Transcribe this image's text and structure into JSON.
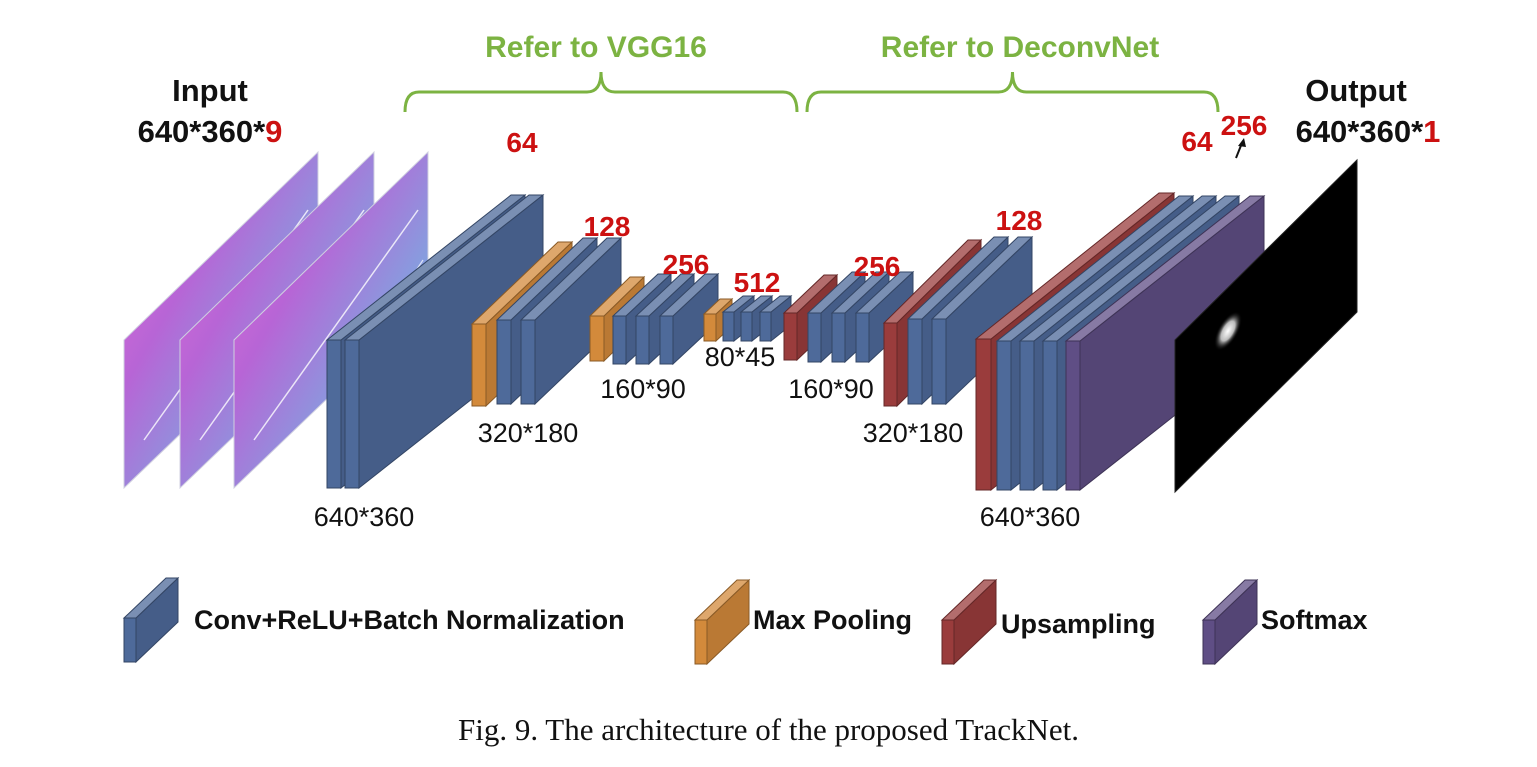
{
  "colors": {
    "conv": "#4e6a9a",
    "pool": "#d38a3b",
    "upsample": "#9a3c3c",
    "softmax": "#5f4e85",
    "bracket": "#7cb342",
    "highlight": "#cc1111",
    "text": "#111111"
  },
  "brackets": {
    "left": "Refer to VGG16",
    "right": "Refer to DeconvNet"
  },
  "input": {
    "title": "Input",
    "dims_prefix": "640*360*",
    "dims_channels": "9"
  },
  "output": {
    "title": "Output",
    "dims_prefix": "640*360*",
    "dims_channels": "1"
  },
  "channel_labels": [
    "64",
    "128",
    "256",
    "512",
    "256",
    "128",
    "64",
    "256"
  ],
  "size_labels": [
    "640*360",
    "320*180",
    "160*90",
    "80*45",
    "160*90",
    "320*180",
    "640*360"
  ],
  "legend": [
    {
      "label": "Conv+ReLU+Batch Normalization",
      "icon": "conv-block-icon"
    },
    {
      "label": "Max Pooling",
      "icon": "pool-block-icon"
    },
    {
      "label": "Upsampling",
      "icon": "upsample-block-icon"
    },
    {
      "label": "Softmax",
      "icon": "softmax-block-icon"
    }
  ],
  "caption": "Fig. 9.  The architecture of the proposed TrackNet."
}
